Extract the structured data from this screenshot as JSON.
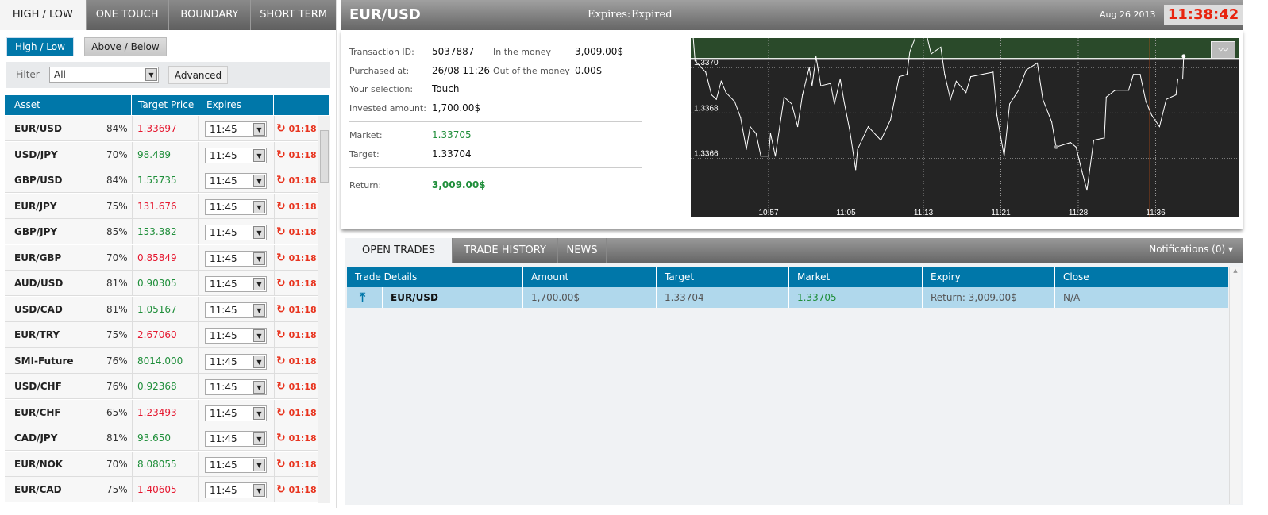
{
  "left": {
    "tabs": [
      "HIGH / LOW",
      "ONE TOUCH",
      "BOUNDARY",
      "SHORT TERM"
    ],
    "active_tab": "HIGH / LOW",
    "sub_buttons": [
      "High / Low",
      "Above / Below"
    ],
    "filter": {
      "label": "Filter",
      "value": "All",
      "advanced": "Advanced"
    },
    "headers": [
      "Asset",
      "Target Price",
      "Expires",
      ""
    ],
    "rows": [
      {
        "asset": "EUR/USD",
        "pct": "84%",
        "price": "1.33697",
        "dir": "red",
        "expires": "11:45",
        "timer": "01:18"
      },
      {
        "asset": "USD/JPY",
        "pct": "70%",
        "price": "98.489",
        "dir": "green",
        "expires": "11:45",
        "timer": "01:18"
      },
      {
        "asset": "GBP/USD",
        "pct": "84%",
        "price": "1.55735",
        "dir": "green",
        "expires": "11:45",
        "timer": "01:18"
      },
      {
        "asset": "EUR/JPY",
        "pct": "75%",
        "price": "131.676",
        "dir": "red",
        "expires": "11:45",
        "timer": "01:18"
      },
      {
        "asset": "GBP/JPY",
        "pct": "85%",
        "price": "153.382",
        "dir": "green",
        "expires": "11:45",
        "timer": "01:18"
      },
      {
        "asset": "EUR/GBP",
        "pct": "70%",
        "price": "0.85849",
        "dir": "red",
        "expires": "11:45",
        "timer": "01:18"
      },
      {
        "asset": "AUD/USD",
        "pct": "81%",
        "price": "0.90305",
        "dir": "green",
        "expires": "11:45",
        "timer": "01:18"
      },
      {
        "asset": "USD/CAD",
        "pct": "81%",
        "price": "1.05167",
        "dir": "green",
        "expires": "11:45",
        "timer": "01:18"
      },
      {
        "asset": "EUR/TRY",
        "pct": "75%",
        "price": "2.67060",
        "dir": "red",
        "expires": "11:45",
        "timer": "01:18"
      },
      {
        "asset": "SMI-Future",
        "pct": "76%",
        "price": "8014.000",
        "dir": "green",
        "expires": "11:45",
        "timer": "01:18"
      },
      {
        "asset": "USD/CHF",
        "pct": "76%",
        "price": "0.92368",
        "dir": "green",
        "expires": "11:45",
        "timer": "01:18"
      },
      {
        "asset": "EUR/CHF",
        "pct": "65%",
        "price": "1.23493",
        "dir": "red",
        "expires": "11:45",
        "timer": "01:18"
      },
      {
        "asset": "CAD/JPY",
        "pct": "81%",
        "price": "93.650",
        "dir": "green",
        "expires": "11:45",
        "timer": "01:18"
      },
      {
        "asset": "EUR/NOK",
        "pct": "70%",
        "price": "8.08055",
        "dir": "green",
        "expires": "11:45",
        "timer": "01:18"
      },
      {
        "asset": "EUR/CAD",
        "pct": "75%",
        "price": "1.40605",
        "dir": "red",
        "expires": "11:45",
        "timer": "01:18"
      }
    ]
  },
  "header": {
    "asset": "EUR/USD",
    "expires_label": "Expires:",
    "expires_value": "Expired",
    "date": "Aug 26 2013",
    "clock": "11:38:42"
  },
  "details": {
    "transaction_id_label": "Transaction ID:",
    "transaction_id": "5037887",
    "purchased_label": "Purchased at:",
    "purchased": "26/08 11:26",
    "selection_label": "Your selection:",
    "selection": "Touch",
    "invested_label": "Invested amount:",
    "invested": "1,700.00$",
    "itm_label": "In the money",
    "itm": "3,009.00$",
    "otm_label": "Out of the money",
    "otm": "0.00$",
    "market_label": "Market:",
    "market": "1.33705",
    "target_label": "Target:",
    "target": "1.33704",
    "return_label": "Return:",
    "return": "3,009.00$"
  },
  "chart_data": {
    "type": "line",
    "x_ticks": [
      "10:57",
      "11:05",
      "11:13",
      "11:21",
      "11:28",
      "11:36"
    ],
    "y_ticks": [
      "1.3366",
      "1.3368",
      "1.3370"
    ],
    "ylim": [
      1.33634,
      1.33713
    ],
    "target": 1.33704,
    "purchase_time": "11:26:00",
    "marker_time": "11:35:24",
    "grid": true,
    "colors": {
      "above": "#2a4a2a",
      "below": "#242424",
      "line": "#ffffff",
      "marker": "#d05010"
    },
    "points": [
      [
        "10:49:12",
        1.33714
      ],
      [
        "10:49:24",
        1.33703
      ],
      [
        "10:50:30",
        1.33698
      ],
      [
        "10:51:06",
        1.33688
      ],
      [
        "10:51:36",
        1.33686
      ],
      [
        "10:52:06",
        1.33694
      ],
      [
        "10:52:36",
        1.33689
      ],
      [
        "10:53:30",
        1.33685
      ],
      [
        "10:54:06",
        1.33678
      ],
      [
        "10:54:42",
        1.33664
      ],
      [
        "10:55:06",
        1.33674
      ],
      [
        "10:55:42",
        1.33671
      ],
      [
        "10:56:12",
        1.33661
      ],
      [
        "10:57:00",
        1.33661
      ],
      [
        "10:57:12",
        1.33671
      ],
      [
        "10:57:42",
        1.33661
      ],
      [
        "10:58:36",
        1.33687
      ],
      [
        "10:59:24",
        1.33684
      ],
      [
        "11:00:00",
        1.33674
      ],
      [
        "11:00:30",
        1.33688
      ],
      [
        "11:01:12",
        1.337
      ],
      [
        "11:01:30",
        1.33692
      ],
      [
        "11:01:54",
        1.33705
      ],
      [
        "11:02:24",
        1.33692
      ],
      [
        "11:03:24",
        1.33693
      ],
      [
        "11:03:48",
        1.33684
      ],
      [
        "11:04:24",
        1.33695
      ],
      [
        "11:04:48",
        1.33685
      ],
      [
        "11:05:24",
        1.33672
      ],
      [
        "11:06:00",
        1.33655
      ],
      [
        "11:06:12",
        1.33664
      ],
      [
        "11:07:18",
        1.33674
      ],
      [
        "11:08:36",
        1.33668
      ],
      [
        "11:09:36",
        1.33677
      ],
      [
        "11:10:30",
        1.33696
      ],
      [
        "11:11:18",
        1.33697
      ],
      [
        "11:11:36",
        1.33707
      ],
      [
        "11:12:36",
        1.33718
      ],
      [
        "11:13:18",
        1.33715
      ],
      [
        "11:13:48",
        1.33706
      ],
      [
        "11:14:48",
        1.33709
      ],
      [
        "11:15:12",
        1.33697
      ],
      [
        "11:15:48",
        1.33686
      ],
      [
        "11:16:24",
        1.33694
      ],
      [
        "11:17:24",
        1.33689
      ],
      [
        "11:17:54",
        1.33696
      ],
      [
        "11:20:12",
        1.33698
      ],
      [
        "11:20:36",
        1.33679
      ],
      [
        "11:21:18",
        1.33661
      ],
      [
        "11:21:48",
        1.33684
      ],
      [
        "11:22:36",
        1.3369
      ],
      [
        "11:23:18",
        1.33699
      ],
      [
        "11:24:18",
        1.33702
      ],
      [
        "11:24:48",
        1.33686
      ],
      [
        "11:25:36",
        1.33676
      ],
      [
        "11:26:00",
        1.33665
      ],
      [
        "11:27:18",
        1.33667
      ],
      [
        "11:27:48",
        1.33665
      ],
      [
        "11:28:24",
        1.33654
      ],
      [
        "11:28:54",
        1.33646
      ],
      [
        "11:29:36",
        1.33668
      ],
      [
        "11:30:42",
        1.33669
      ],
      [
        "11:30:54",
        1.33687
      ],
      [
        "11:31:48",
        1.3369
      ],
      [
        "11:33:12",
        1.3369
      ],
      [
        "11:33:42",
        1.33697
      ],
      [
        "11:34:24",
        1.33697
      ],
      [
        "11:35:00",
        1.33685
      ],
      [
        "11:35:36",
        1.33679
      ],
      [
        "11:36:24",
        1.33674
      ],
      [
        "11:37:06",
        1.33686
      ],
      [
        "11:38:06",
        1.33688
      ],
      [
        "11:38:18",
        1.33695
      ],
      [
        "11:38:48",
        1.33695
      ],
      [
        "11:38:54",
        1.33705
      ]
    ]
  },
  "bottom": {
    "tabs": [
      "OPEN TRADES",
      "TRADE HISTORY",
      "NEWS"
    ],
    "notifications": "Notifications (0)",
    "headers": [
      "Trade Details",
      "Amount",
      "Target",
      "Market",
      "Expiry",
      "Close"
    ],
    "row": {
      "asset": "EUR/USD",
      "amount": "1,700.00$",
      "target": "1.33704",
      "market": "1.33705",
      "expiry": "Return: 3,009.00$",
      "close": "N/A"
    }
  }
}
